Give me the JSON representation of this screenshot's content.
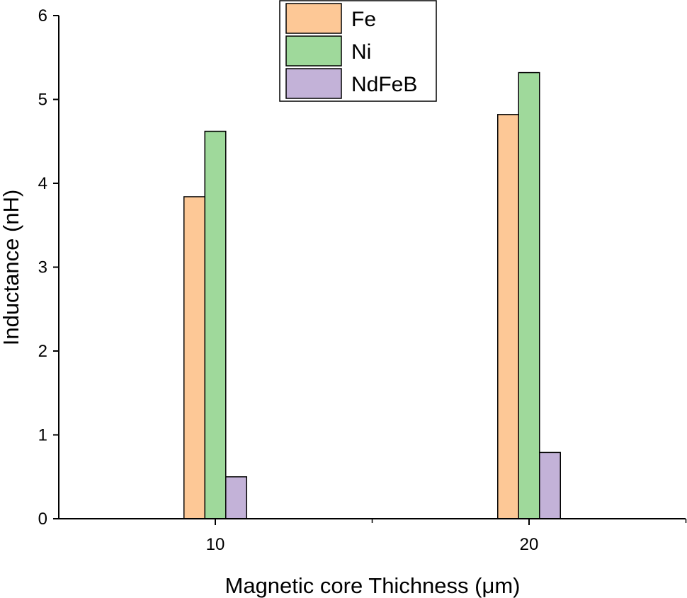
{
  "chart_data": {
    "type": "bar",
    "title": "",
    "xlabel": "Magnetic core Thichness (μm)",
    "ylabel": "Inductance (nH)",
    "categories": [
      "10",
      "20"
    ],
    "series": [
      {
        "name": "Fe",
        "values": [
          3.84,
          4.82
        ],
        "color": "#FDC896"
      },
      {
        "name": "Ni",
        "values": [
          4.62,
          5.32
        ],
        "color": "#9FD99B"
      },
      {
        "name": "NdFeB",
        "values": [
          0.5,
          0.79
        ],
        "color": "#C3B2D8"
      }
    ],
    "ylim": [
      0,
      6
    ],
    "yticks": [
      "0",
      "1",
      "2",
      "3",
      "4",
      "5",
      "6"
    ],
    "grid": false,
    "legend_position": "top-center"
  }
}
